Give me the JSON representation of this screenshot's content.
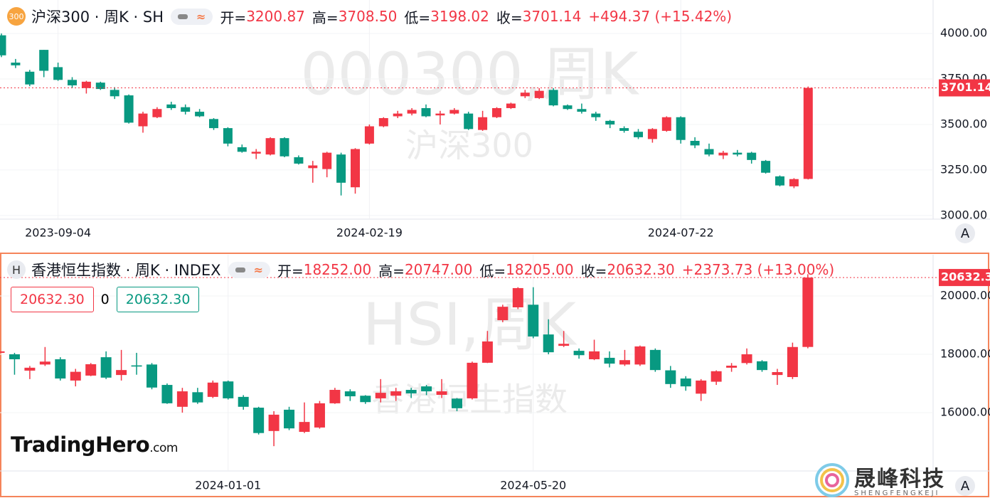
{
  "chart_data": [
    {
      "type": "candlestick",
      "icon": "300",
      "title": "沪深300 · 周K · SH",
      "ohlc_labels": [
        "开=",
        "高=",
        "低=",
        "收="
      ],
      "ohlc_values": [
        "3200.87",
        "3708.50",
        "3198.02",
        "3701.14"
      ],
      "change": "+494.37 (+15.42%)",
      "watermark": "000300,周K",
      "watermark_name": "沪深300",
      "last_price_label": "3701.14",
      "up_color": "#f23645",
      "down_color": "#089981",
      "categories": [
        null,
        null,
        null,
        null,
        "2023-09-04",
        null,
        null,
        null,
        null,
        null,
        null,
        null,
        null,
        null,
        null,
        null,
        null,
        null,
        null,
        null,
        null,
        null,
        null,
        null,
        null,
        null,
        "2024-02-19",
        null,
        null,
        null,
        null,
        null,
        null,
        null,
        null,
        null,
        null,
        null,
        null,
        null,
        null,
        null,
        null,
        null,
        null,
        null,
        null,
        null,
        "2024-07-22",
        null,
        null,
        null,
        null,
        null,
        null,
        null,
        null,
        null
      ],
      "open": [
        3990,
        3840,
        3790,
        3910,
        3815,
        3745,
        3700,
        3730,
        3690,
        3660,
        3490,
        3540,
        3610,
        3595,
        3570,
        3530,
        3480,
        3375,
        3340,
        3335,
        3425,
        3320,
        3260,
        3255,
        3335,
        3155,
        3395,
        3490,
        3545,
        3560,
        3590,
        3550,
        3560,
        3560,
        3470,
        3540,
        3590,
        3655,
        3645,
        3690,
        3605,
        3585,
        3560,
        3520,
        3480,
        3460,
        3420,
        3465,
        3540,
        3410,
        3365,
        3330,
        3345,
        3345,
        3300,
        3215,
        3160,
        3200.87
      ],
      "high": [
        4000,
        3860,
        3800,
        3910,
        3840,
        3760,
        3740,
        3735,
        3705,
        3665,
        3570,
        3595,
        3625,
        3610,
        3585,
        3535,
        3485,
        3390,
        3365,
        3430,
        3430,
        3330,
        3300,
        3350,
        3345,
        3370,
        3500,
        3540,
        3575,
        3590,
        3610,
        3575,
        3590,
        3570,
        3575,
        3595,
        3620,
        3690,
        3700,
        3700,
        3610,
        3615,
        3570,
        3525,
        3490,
        3475,
        3480,
        3545,
        3545,
        3430,
        3395,
        3355,
        3360,
        3350,
        3305,
        3220,
        3205,
        3708.5
      ],
      "low": [
        3870,
        3810,
        3710,
        3760,
        3740,
        3700,
        3670,
        3690,
        3640,
        3505,
        3455,
        3535,
        3580,
        3555,
        3540,
        3470,
        3380,
        3345,
        3310,
        3330,
        3320,
        3280,
        3180,
        3210,
        3110,
        3120,
        3390,
        3485,
        3535,
        3550,
        3540,
        3500,
        3555,
        3470,
        3465,
        3535,
        3585,
        3645,
        3640,
        3600,
        3580,
        3560,
        3520,
        3480,
        3455,
        3420,
        3400,
        3460,
        3395,
        3370,
        3325,
        3310,
        3325,
        3285,
        3230,
        3160,
        3150,
        3198.02
      ],
      "close": [
        3880,
        3825,
        3720,
        3795,
        3745,
        3715,
        3735,
        3695,
        3655,
        3510,
        3560,
        3585,
        3590,
        3570,
        3545,
        3480,
        3395,
        3350,
        3350,
        3425,
        3325,
        3285,
        3275,
        3345,
        3180,
        3365,
        3490,
        3535,
        3560,
        3580,
        3545,
        3560,
        3580,
        3475,
        3540,
        3590,
        3615,
        3675,
        3685,
        3605,
        3585,
        3570,
        3540,
        3500,
        3465,
        3430,
        3475,
        3540,
        3415,
        3385,
        3335,
        3345,
        3335,
        3305,
        3235,
        3165,
        3200,
        3701.14
      ],
      "ylim": [
        2980,
        4184
      ],
      "yticks": [
        {
          "value": 3000,
          "label": "3000.00"
        },
        {
          "value": 3250,
          "label": "3250.00"
        },
        {
          "value": 3500,
          "label": "3500.00"
        },
        {
          "value": 3750,
          "label": "3750.00"
        },
        {
          "value": 4000,
          "label": "4000.00"
        }
      ]
    },
    {
      "type": "candlestick",
      "icon": "H",
      "title": "香港恒生指数 · 周K · INDEX",
      "ohlc_labels": [
        "开=",
        "高=",
        "低=",
        "收="
      ],
      "ohlc_values": [
        "18252.00",
        "20747.00",
        "18205.00",
        "20632.30"
      ],
      "change": "+2373.73 (+13.00%)",
      "watermark": "HSI,周K",
      "watermark_name": "香港恒生指数",
      "last_price_label": "20632.30",
      "order_panel": [
        "20632.30",
        "0",
        "20632.30"
      ],
      "up_color": "#f23645",
      "down_color": "#089981",
      "categories": [
        null,
        null,
        null,
        null,
        null,
        null,
        null,
        null,
        null,
        null,
        null,
        null,
        null,
        null,
        null,
        "2024-01-01",
        null,
        null,
        null,
        null,
        null,
        null,
        null,
        null,
        null,
        null,
        null,
        null,
        null,
        null,
        null,
        null,
        null,
        null,
        null,
        "2024-05-20",
        null,
        null,
        null,
        null,
        null,
        null,
        null,
        null,
        null,
        null,
        null,
        null,
        null,
        null,
        null,
        null,
        null,
        null
      ],
      "open": [
        18050,
        18000,
        17440,
        17650,
        17830,
        17100,
        17270,
        17900,
        17290,
        17620,
        17650,
        16950,
        16200,
        16700,
        16540,
        17070,
        16540,
        16170,
        15370,
        16100,
        15340,
        15490,
        16320,
        16730,
        16580,
        16490,
        16580,
        16780,
        16900,
        16610,
        16480,
        16490,
        17710,
        19170,
        19610,
        19700,
        18680,
        18290,
        18120,
        17830,
        17880,
        17650,
        17650,
        18150,
        17450,
        17170,
        16650,
        17060,
        17540,
        17700,
        17760,
        17290,
        17220,
        18252
      ],
      "high": [
        18150,
        18050,
        17600,
        18250,
        17900,
        17500,
        17700,
        18100,
        18150,
        18050,
        17700,
        17000,
        16850,
        16850,
        17100,
        17100,
        16600,
        16200,
        16050,
        16200,
        16350,
        16400,
        16850,
        16800,
        16600,
        17150,
        16850,
        16850,
        16950,
        17150,
        16500,
        17750,
        18800,
        19700,
        20300,
        20300,
        19200,
        18800,
        18200,
        18500,
        18100,
        18150,
        18300,
        18200,
        17600,
        17250,
        17150,
        17450,
        17700,
        18200,
        17800,
        17500,
        18400,
        20747
      ],
      "low": [
        18000,
        17300,
        17150,
        17600,
        17100,
        16900,
        17250,
        17150,
        17100,
        17300,
        16800,
        16300,
        16000,
        16300,
        16500,
        16450,
        16100,
        15250,
        14850,
        15400,
        15300,
        15450,
        16300,
        16400,
        16300,
        16350,
        16400,
        16500,
        16600,
        16500,
        16050,
        16450,
        17700,
        19100,
        19550,
        18550,
        18000,
        18250,
        17850,
        17800,
        17550,
        17600,
        17600,
        17400,
        16850,
        16750,
        16400,
        16950,
        17400,
        17650,
        17400,
        16950,
        17150,
        18205
      ],
      "close": [
        18100,
        17830,
        17540,
        17750,
        17170,
        17400,
        17660,
        17200,
        17460,
        17580,
        16860,
        16320,
        16730,
        16350,
        17030,
        16490,
        16200,
        15300,
        15930,
        15460,
        15680,
        16320,
        16780,
        16560,
        16360,
        16680,
        16730,
        16660,
        16730,
        16730,
        16150,
        17710,
        18440,
        19630,
        20270,
        18610,
        18070,
        18360,
        17970,
        18100,
        17680,
        17800,
        18270,
        17460,
        16980,
        16900,
        17100,
        17420,
        17610,
        18000,
        17460,
        17390,
        18250,
        20632.3
      ],
      "ylim": [
        14000,
        21415
      ],
      "yticks": [
        {
          "value": 16000,
          "label": "16000.00"
        },
        {
          "value": 18000,
          "label": "18000.00"
        },
        {
          "value": 20000,
          "label": "20000.00"
        }
      ]
    }
  ],
  "branding": {
    "trading_hero": "TradingHero",
    "trading_hero_suffix": ".com",
    "company": "晟峰科技",
    "company_pinyin": "SHENGFENGKEJI"
  },
  "controls": {
    "auto_scale": "A"
  }
}
